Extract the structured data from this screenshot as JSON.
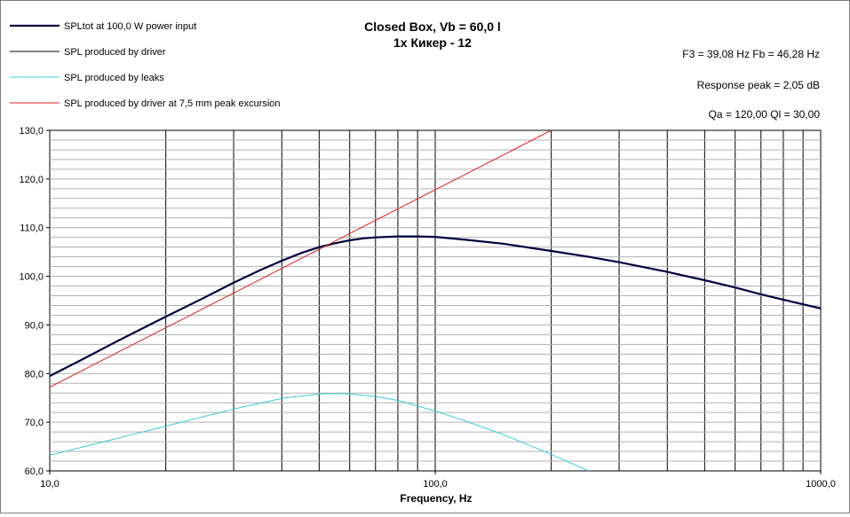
{
  "chart_data": {
    "type": "line",
    "title": "Closed Box, Vb = 60,0 l",
    "subtitle": "1x Кикер - 12",
    "xlabel": "Frequency, Hz",
    "ylabel": "",
    "x_scale": "log",
    "xlim": [
      10,
      1000
    ],
    "ylim": [
      60,
      130
    ],
    "x_ticks": [
      10,
      100,
      1000
    ],
    "x_tick_labels": [
      "10,0",
      "100,0",
      "1000,0"
    ],
    "y_ticks": [
      60,
      70,
      80,
      90,
      100,
      110,
      120,
      130
    ],
    "y_tick_labels": [
      "60,0",
      "70,0",
      "80,0",
      "90,0",
      "100,0",
      "110,0",
      "120,0",
      "130,0"
    ],
    "grid": true,
    "legend_position": "top-left",
    "annotations": [
      "F3 = 39,08  Hz   Fb = 46,28  Hz",
      "Response peak = 2,05 dB",
      "Qa = 120,00   Ql = 30,00"
    ],
    "series": [
      {
        "name": "SPLtot at 100,0 W power input",
        "color": "#000040",
        "x": [
          10,
          12,
          15,
          20,
          25,
          30,
          35,
          40,
          45,
          50,
          55,
          60,
          65,
          70,
          80,
          90,
          100,
          120,
          150,
          200,
          250,
          300,
          400,
          500,
          600,
          700,
          800,
          1000
        ],
        "y": [
          79.5,
          82.7,
          86.7,
          91.7,
          95.5,
          98.7,
          101.2,
          103.2,
          104.8,
          106.0,
          106.8,
          107.4,
          107.8,
          108.0,
          108.2,
          108.2,
          108.1,
          107.5,
          106.7,
          105.2,
          104.0,
          102.9,
          100.9,
          99.2,
          97.7,
          96.3,
          95.2,
          93.4
        ]
      },
      {
        "name": "SPL produced by driver",
        "color": "#000000",
        "x": [],
        "y": []
      },
      {
        "name": "SPL produced by leaks",
        "color": "#40c8e0",
        "x": [
          10,
          15,
          20,
          30,
          40,
          50,
          55,
          60,
          70,
          80,
          100,
          120,
          150,
          200,
          250
        ],
        "y": [
          63.2,
          66.7,
          69.2,
          72.7,
          74.9,
          75.8,
          75.9,
          75.8,
          75.3,
          74.5,
          72.3,
          70.2,
          67.5,
          63.4,
          60.0
        ]
      },
      {
        "name": "SPL produced by driver at 7,5 mm peak excursion",
        "color": "#e02020",
        "x": [
          10,
          200
        ],
        "y": [
          77.2,
          130.0
        ]
      }
    ]
  }
}
